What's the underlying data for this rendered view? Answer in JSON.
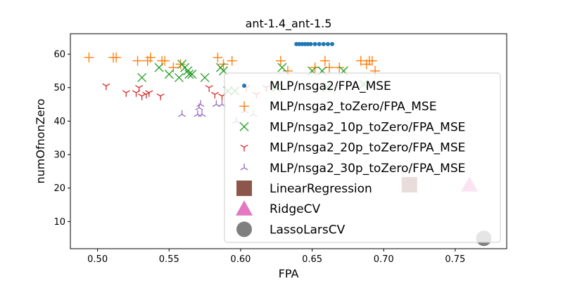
{
  "chart_data": {
    "type": "scatter",
    "title": "ant-1.4_ant-1.5",
    "xlabel": "FPA",
    "ylabel": "numOfnonZero",
    "xlim": [
      0.481,
      0.786
    ],
    "ylim": [
      1.9,
      66.1
    ],
    "xticks": [
      "0.50",
      "0.55",
      "0.60",
      "0.65",
      "0.70",
      "0.75"
    ],
    "yticks": [
      "10",
      "20",
      "30",
      "40",
      "50",
      "60"
    ],
    "grid": false,
    "legend_position": "right",
    "series": [
      {
        "name": "MLP/nsga2/FPA_MSE",
        "marker": "dot",
        "color": "#1f77b4",
        "x": [
          0.639,
          0.641,
          0.643,
          0.645,
          0.647,
          0.649,
          0.652,
          0.655,
          0.658,
          0.661,
          0.664
        ],
        "y": [
          63,
          63,
          63,
          63,
          63,
          63,
          63,
          63,
          63,
          63,
          63
        ]
      },
      {
        "name": "MLP/nsga2_toZero/FPA_MSE",
        "marker": "plus",
        "color": "#ff7f0e",
        "x": [
          0.494,
          0.511,
          0.513,
          0.528,
          0.535,
          0.537,
          0.545,
          0.547,
          0.553,
          0.558,
          0.584,
          0.588,
          0.594,
          0.628,
          0.633,
          0.652,
          0.659,
          0.662,
          0.669,
          0.684,
          0.688,
          0.69,
          0.692,
          0.694
        ],
        "y": [
          59,
          59,
          59,
          58,
          58,
          59,
          58,
          58,
          56,
          57,
          59,
          57,
          58,
          58,
          55,
          56,
          58,
          56,
          56,
          58,
          57,
          58,
          58,
          55
        ]
      },
      {
        "name": "MLP/nsga2_10p_toZero/FPA_MSE",
        "marker": "x",
        "color": "#2ca02c",
        "x": [
          0.531,
          0.543,
          0.55,
          0.557,
          0.559,
          0.561,
          0.563,
          0.564,
          0.566,
          0.575,
          0.586,
          0.588,
          0.591,
          0.596,
          0.625,
          0.629,
          0.65,
          0.657,
          0.66,
          0.672,
          0.686
        ],
        "y": [
          53,
          56,
          54,
          53,
          57,
          56,
          55,
          54,
          54,
          53,
          56,
          55,
          49,
          49,
          50,
          56,
          55,
          55,
          50,
          55,
          51
        ]
      },
      {
        "name": "MLP/nsga2_20p_toZero/FPA_MSE",
        "marker": "tri_down",
        "color": "#d62728",
        "x": [
          0.506,
          0.52,
          0.527,
          0.529,
          0.531,
          0.534,
          0.536,
          0.544,
          0.578,
          0.582,
          0.587,
          0.604,
          0.611,
          0.618
        ],
        "y": [
          50.5,
          48.5,
          48.5,
          50,
          47.5,
          48,
          48.5,
          47.5,
          50,
          48,
          47.5,
          50,
          48,
          50
        ]
      },
      {
        "name": "MLP/nsga2_30p_toZero/FPA_MSE",
        "marker": "tri_up",
        "color": "#9467bd",
        "x": [
          0.559,
          0.57,
          0.571,
          0.572,
          0.573,
          0.583,
          0.587,
          0.597,
          0.603,
          0.609
        ],
        "y": [
          42,
          42,
          44,
          45,
          42,
          45,
          45,
          40,
          43,
          42
        ]
      },
      {
        "name": "LinearRegression",
        "marker": "square",
        "color": "#8c564b",
        "x": [
          0.718
        ],
        "y": [
          21
        ]
      },
      {
        "name": "RidgeCV",
        "marker": "triangle",
        "color": "#e377c2",
        "x": [
          0.76
        ],
        "y": [
          21
        ]
      },
      {
        "name": "LassoLarsCV",
        "marker": "circle",
        "color": "#7f7f7f",
        "x": [
          0.77
        ],
        "y": [
          5
        ]
      }
    ]
  }
}
